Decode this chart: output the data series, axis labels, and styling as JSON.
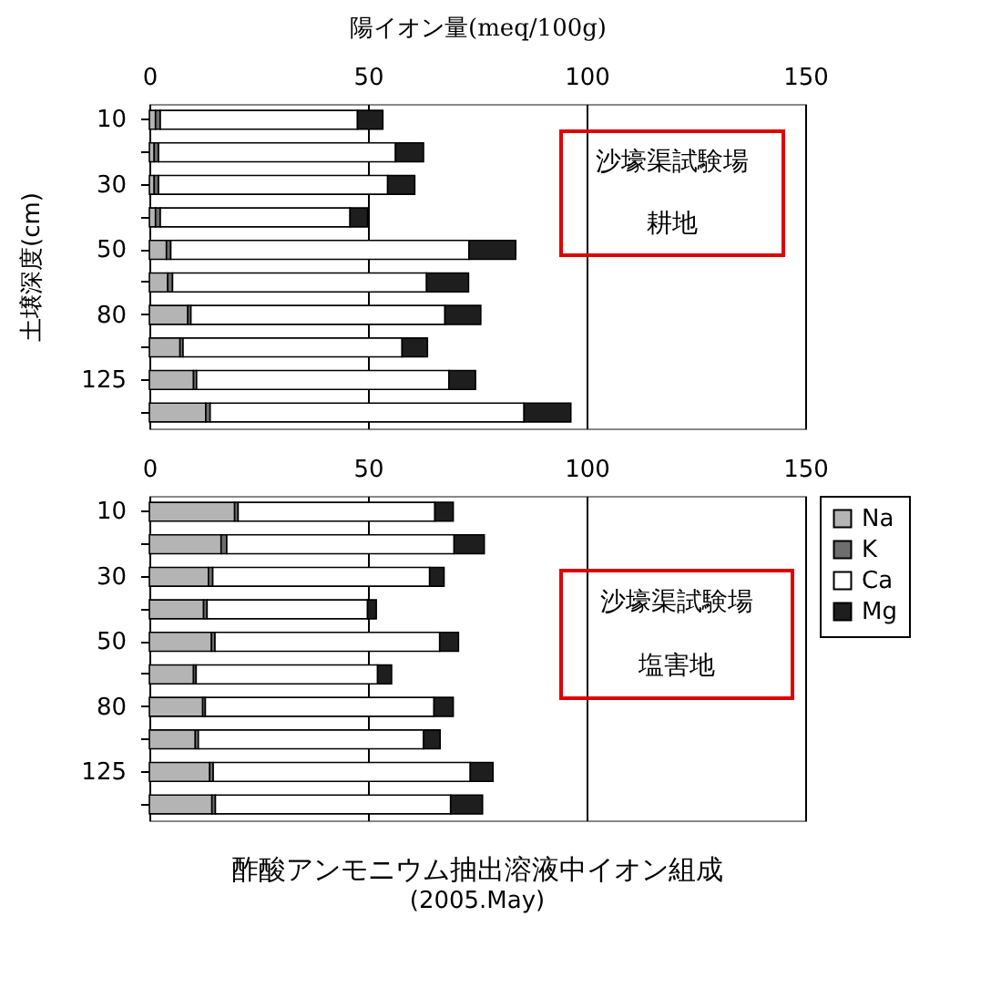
{
  "chart_data": [
    {
      "type": "bar",
      "orientation": "horizontal",
      "stacked": true,
      "xlabel": "陽イオン量(meq/100g)",
      "ylabel": "土壌深度(cm)",
      "categories": [
        "10",
        null,
        "30",
        null,
        "50",
        null,
        "80",
        null,
        "125",
        null
      ],
      "series": [
        {
          "color": "#b4b4b4",
          "values": [
            1.4,
            1.1,
            1.1,
            1.4,
            3.9,
            4.2,
            8.8,
            7.0,
            10.1,
            12.9
          ]
        },
        {
          "color": "#6e6e6e",
          "values": [
            1.1,
            1.0,
            1.0,
            1.1,
            1.0,
            1.1,
            0.7,
            0.7,
            0.7,
            1.0
          ]
        },
        {
          "color": "#ffffff",
          "values": [
            45.1,
            54.2,
            52.4,
            43.4,
            68.2,
            58.1,
            58.1,
            50.1,
            57.7,
            71.8
          ]
        },
        {
          "color": "#1e1e1e",
          "values": [
            5.8,
            6.4,
            6.2,
            4.0,
            10.7,
            9.6,
            8.2,
            5.8,
            6.1,
            10.7
          ]
        }
      ],
      "xlim": [
        0,
        150
      ],
      "xticks": [
        0,
        50,
        100,
        150
      ],
      "grid": "x",
      "annotations": [
        "沙壕渠試験場",
        "耕地"
      ]
    },
    {
      "type": "bar",
      "orientation": "horizontal",
      "stacked": true,
      "title": "酢酸アンモニウム抽出溶液中イオン組成",
      "subtitle": "(2005.May)",
      "categories": [
        "10",
        null,
        "30",
        null,
        "50",
        null,
        "80",
        null,
        "125",
        null
      ],
      "series": [
        {
          "name": "Na",
          "color": "#b4b4b4",
          "values": [
            19.5,
            16.4,
            13.5,
            12.4,
            14.2,
            10.1,
            12.2,
            10.5,
            13.8,
            14.3
          ]
        },
        {
          "name": "K",
          "color": "#6e6e6e",
          "values": [
            0.8,
            1.3,
            1.0,
            0.8,
            0.8,
            0.6,
            0.6,
            0.7,
            0.8,
            0.8
          ]
        },
        {
          "name": "Ca",
          "color": "#ffffff",
          "values": [
            45.0,
            52.0,
            49.6,
            36.7,
            51.4,
            41.5,
            52.3,
            51.5,
            58.8,
            53.8
          ]
        },
        {
          "name": "Mg",
          "color": "#1e1e1e",
          "values": [
            4.2,
            6.9,
            3.3,
            2.0,
            4.3,
            3.2,
            4.4,
            3.8,
            5.2,
            7.3
          ]
        }
      ],
      "xlim": [
        0,
        150
      ],
      "xticks": [
        0,
        50,
        100,
        150
      ],
      "grid": "x",
      "legend": "right",
      "annotations": [
        "沙壕渠試験場",
        "塩害地"
      ]
    }
  ]
}
